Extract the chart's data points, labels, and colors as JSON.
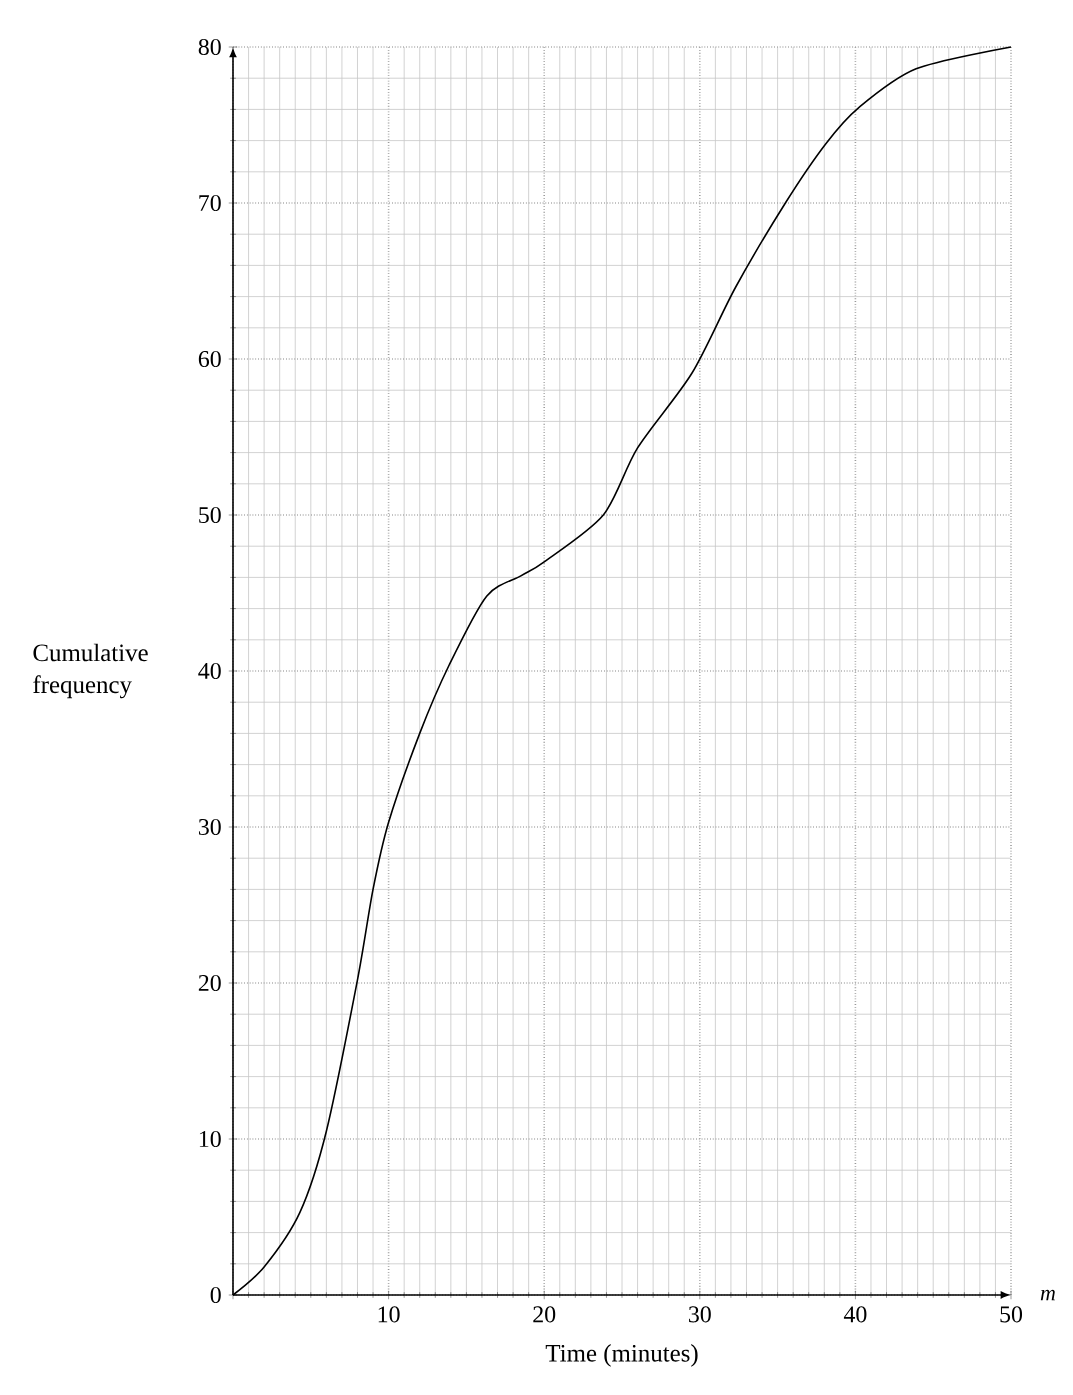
{
  "chart_data": {
    "type": "line",
    "xlabel": "Time (minutes)",
    "ylabel": "Cumulative frequency",
    "annotations": [
      "m"
    ],
    "x": [
      0,
      2,
      4.3,
      6,
      8,
      9,
      10,
      12,
      13.9,
      16.3,
      18.5,
      20,
      23.8,
      26,
      29.5,
      32.3,
      35.5,
      38.1,
      40.2,
      43.9,
      50
    ],
    "series": [
      {
        "color": "#000000",
        "values": [
          0,
          1.8,
          5.3,
          10.5,
          20.2,
          26,
          30.3,
          36,
          40.4,
          44.8,
          46.1,
          47,
          50,
          54.3,
          59.1,
          64.6,
          70,
          73.8,
          76.1,
          78.6,
          80
        ]
      }
    ],
    "xlim": [
      0,
      50
    ],
    "ylim": [
      0,
      80
    ],
    "xticks": [
      {
        "value": 0,
        "label": null
      },
      10,
      20,
      30,
      40,
      50
    ],
    "yticks": [
      0,
      10,
      20,
      30,
      40,
      50,
      60,
      70,
      80
    ],
    "grid": true,
    "marker": "none",
    "line_style": "solid"
  }
}
